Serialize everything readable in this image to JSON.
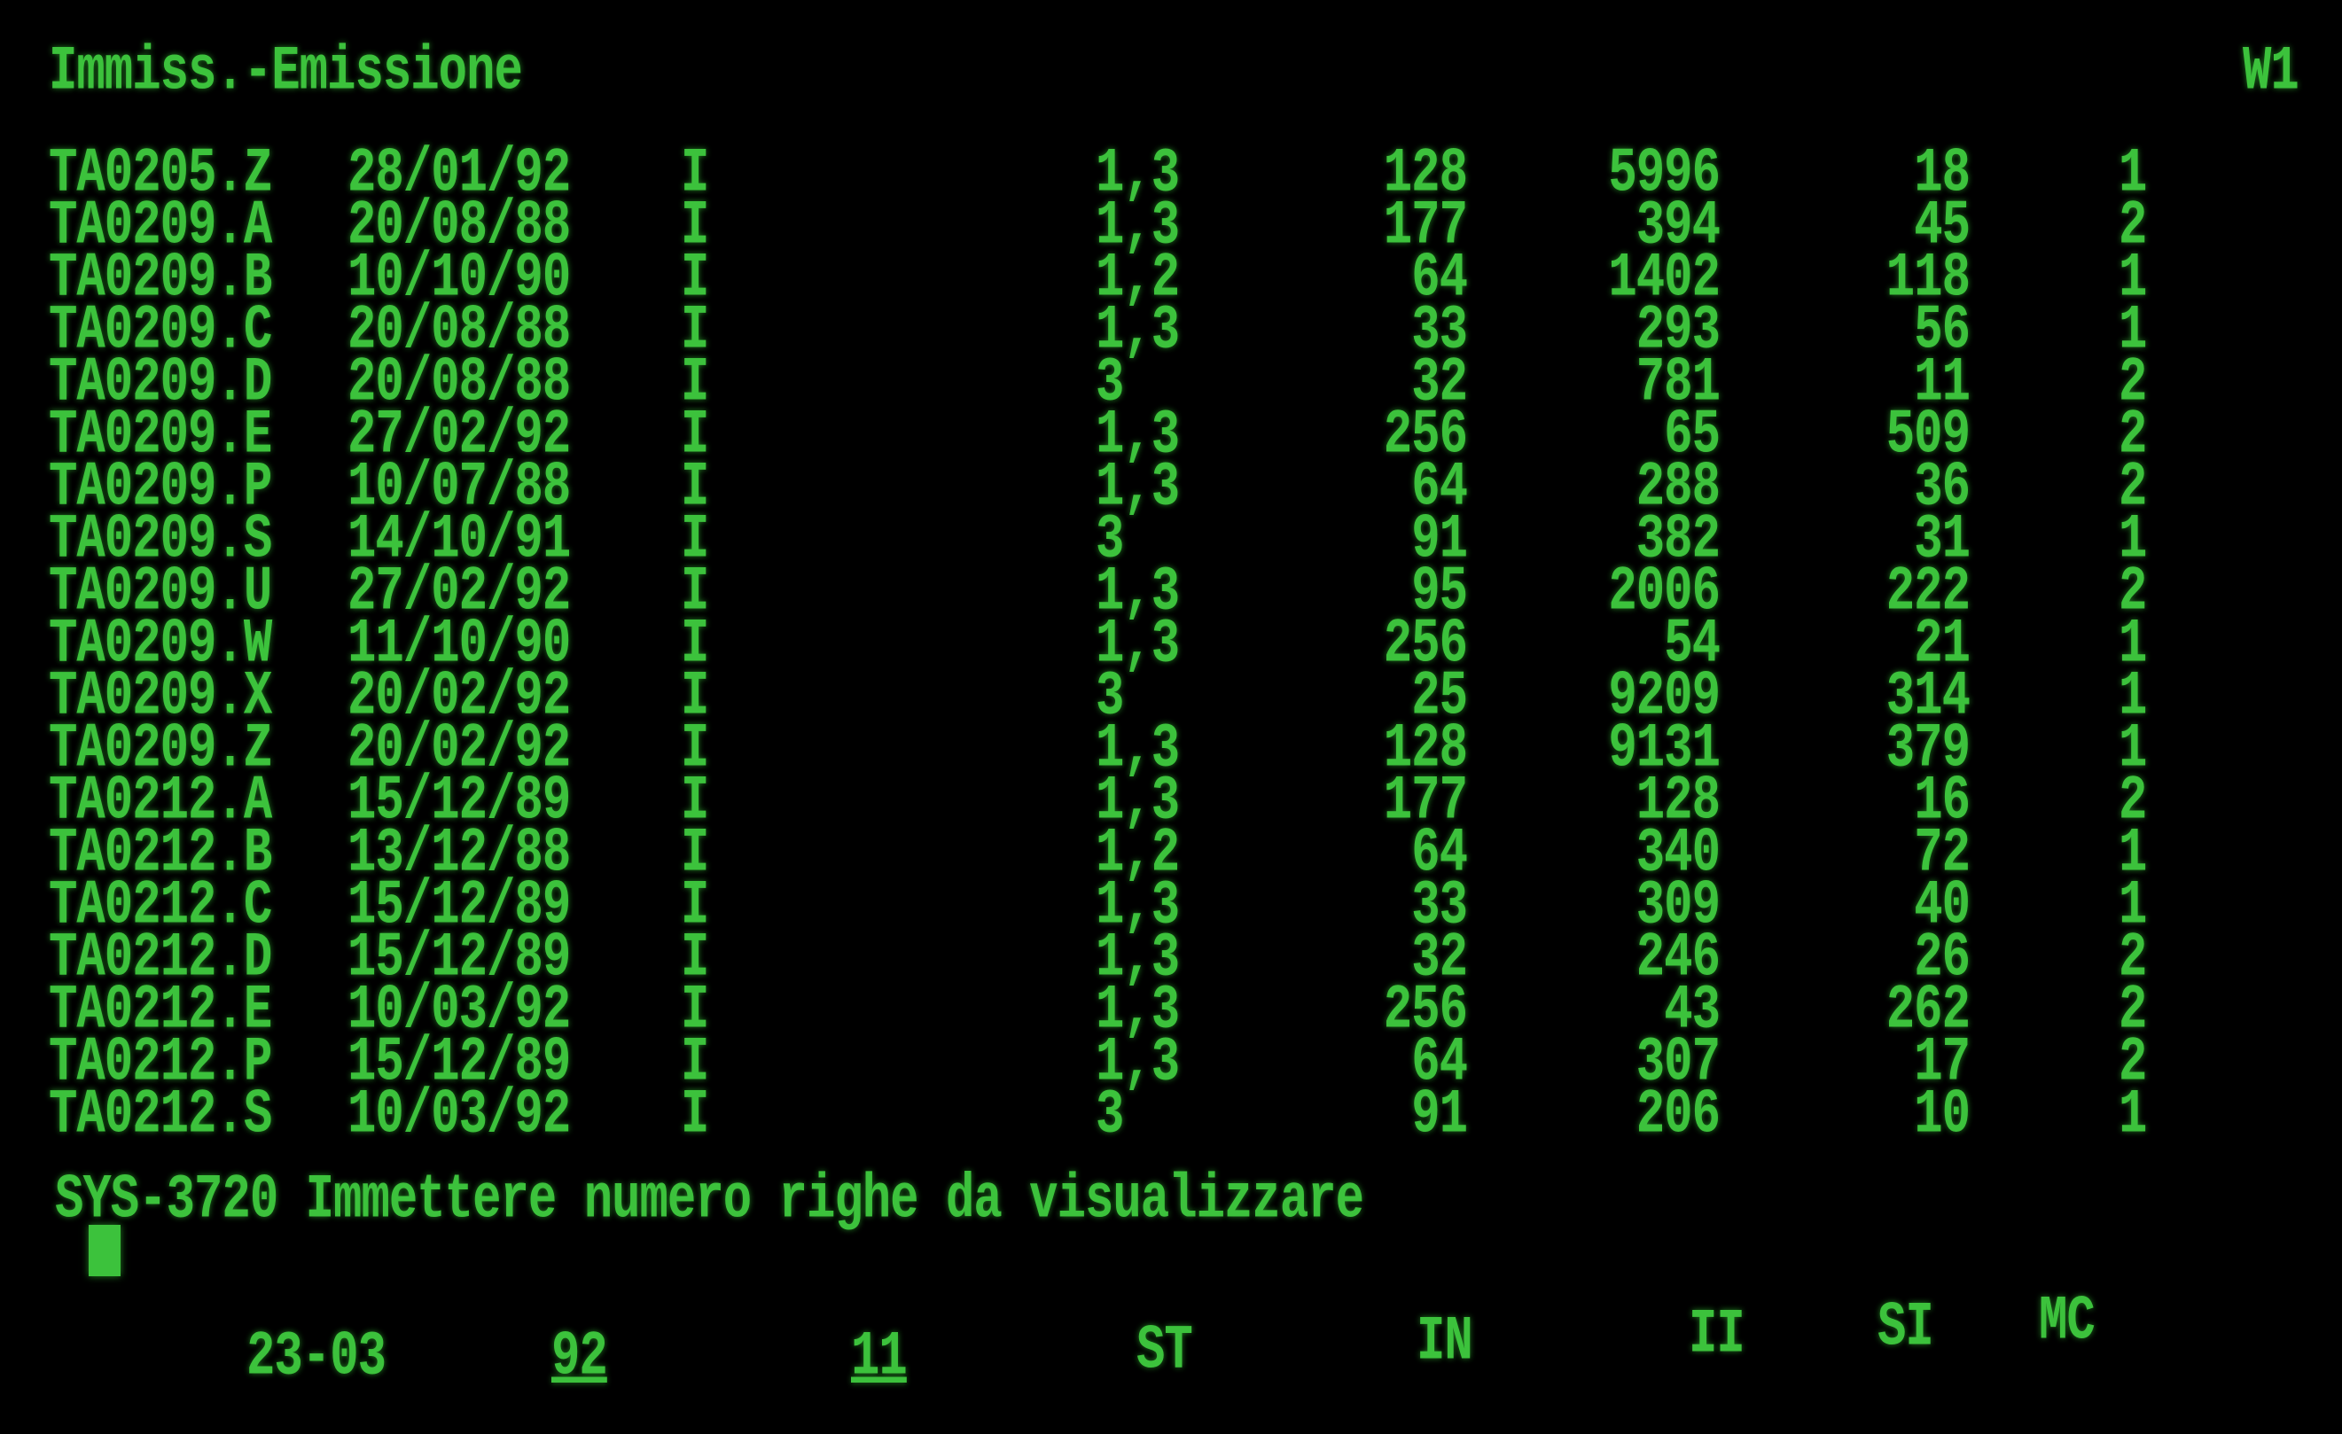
{
  "header": {
    "title": "Immiss.-Emissione",
    "window_id": "W1"
  },
  "rows": [
    {
      "name": "TA0205.Z",
      "date": "28/01/92",
      "flag": "I",
      "st": "1,3",
      "in": "128",
      "ii": "5996",
      "si": "18",
      "mc": "1"
    },
    {
      "name": "TA0209.A",
      "date": "20/08/88",
      "flag": "I",
      "st": "1,3",
      "in": "177",
      "ii": "394",
      "si": "45",
      "mc": "2"
    },
    {
      "name": "TA0209.B",
      "date": "10/10/90",
      "flag": "I",
      "st": "1,2",
      "in": "64",
      "ii": "1402",
      "si": "118",
      "mc": "1"
    },
    {
      "name": "TA0209.C",
      "date": "20/08/88",
      "flag": "I",
      "st": "1,3",
      "in": "33",
      "ii": "293",
      "si": "56",
      "mc": "1"
    },
    {
      "name": "TA0209.D",
      "date": "20/08/88",
      "flag": "I",
      "st": "3",
      "in": "32",
      "ii": "781",
      "si": "11",
      "mc": "2"
    },
    {
      "name": "TA0209.E",
      "date": "27/02/92",
      "flag": "I",
      "st": "1,3",
      "in": "256",
      "ii": "65",
      "si": "509",
      "mc": "2"
    },
    {
      "name": "TA0209.P",
      "date": "10/07/88",
      "flag": "I",
      "st": "1,3",
      "in": "64",
      "ii": "288",
      "si": "36",
      "mc": "2"
    },
    {
      "name": "TA0209.S",
      "date": "14/10/91",
      "flag": "I",
      "st": "3",
      "in": "91",
      "ii": "382",
      "si": "31",
      "mc": "1"
    },
    {
      "name": "TA0209.U",
      "date": "27/02/92",
      "flag": "I",
      "st": "1,3",
      "in": "95",
      "ii": "2006",
      "si": "222",
      "mc": "2"
    },
    {
      "name": "TA0209.W",
      "date": "11/10/90",
      "flag": "I",
      "st": "1,3",
      "in": "256",
      "ii": "54",
      "si": "21",
      "mc": "1"
    },
    {
      "name": "TA0209.X",
      "date": "20/02/92",
      "flag": "I",
      "st": "3",
      "in": "25",
      "ii": "9209",
      "si": "314",
      "mc": "1"
    },
    {
      "name": "TA0209.Z",
      "date": "20/02/92",
      "flag": "I",
      "st": "1,3",
      "in": "128",
      "ii": "9131",
      "si": "379",
      "mc": "1"
    },
    {
      "name": "TA0212.A",
      "date": "15/12/89",
      "flag": "I",
      "st": "1,3",
      "in": "177",
      "ii": "128",
      "si": "16",
      "mc": "2"
    },
    {
      "name": "TA0212.B",
      "date": "13/12/88",
      "flag": "I",
      "st": "1,2",
      "in": "64",
      "ii": "340",
      "si": "72",
      "mc": "1"
    },
    {
      "name": "TA0212.C",
      "date": "15/12/89",
      "flag": "I",
      "st": "1,3",
      "in": "33",
      "ii": "309",
      "si": "40",
      "mc": "1"
    },
    {
      "name": "TA0212.D",
      "date": "15/12/89",
      "flag": "I",
      "st": "1,3",
      "in": "32",
      "ii": "246",
      "si": "26",
      "mc": "2"
    },
    {
      "name": "TA0212.E",
      "date": "10/03/92",
      "flag": "I",
      "st": "1,3",
      "in": "256",
      "ii": "43",
      "si": "262",
      "mc": "2"
    },
    {
      "name": "TA0212.P",
      "date": "15/12/89",
      "flag": "I",
      "st": "1,3",
      "in": "64",
      "ii": "307",
      "si": "17",
      "mc": "2"
    },
    {
      "name": "TA0212.S",
      "date": "10/03/92",
      "flag": "I",
      "st": "3",
      "in": "91",
      "ii": "206",
      "si": "10",
      "mc": "1"
    }
  ],
  "message": "SYS-3720 Immettere numero righe da visualizzare",
  "footer": {
    "date": "23-03",
    "f1": "92",
    "f2": "11",
    "st": "ST",
    "in": "IN",
    "ii": "II",
    "si": "SI",
    "mc": "MC"
  },
  "colors": {
    "phosphor": "#3cc23c",
    "background": "#000000"
  }
}
